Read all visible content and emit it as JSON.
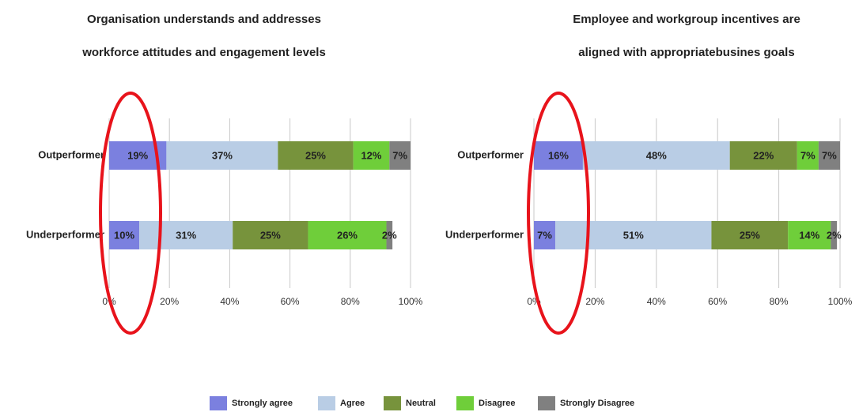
{
  "chart_data": [
    {
      "type": "stacked-bar-horizontal",
      "title": [
        "Organisation understands and addresses",
        "workforce attitudes and engagement levels"
      ],
      "categories": [
        "Outperformer",
        "Underperformer"
      ],
      "series": [
        {
          "name": "Strongly agree",
          "color": "#7b80df",
          "values": [
            19,
            10
          ],
          "value_labels": [
            "19%",
            "10%"
          ]
        },
        {
          "name": "Agree",
          "color": "#b9cde5",
          "values": [
            37,
            31
          ],
          "value_labels": [
            "37%",
            "31%"
          ]
        },
        {
          "name": "Neutral",
          "color": "#77933c",
          "values": [
            25,
            25
          ],
          "value_labels": [
            "25%",
            "25%"
          ]
        },
        {
          "name": "Disagree",
          "color": "#6fce3a",
          "values": [
            12,
            26
          ],
          "value_labels": [
            "12%",
            "26%"
          ]
        },
        {
          "name": "Strongly Disagree",
          "color": "#808080",
          "values": [
            7,
            2
          ],
          "value_labels": [
            "7%",
            "2%"
          ]
        }
      ],
      "xlim": [
        0,
        100
      ],
      "xticks": [
        {
          "value": 0,
          "label": "0%"
        },
        {
          "value": 20,
          "label": "20%"
        },
        {
          "value": 40,
          "label": "40%"
        },
        {
          "value": 60,
          "label": "60%"
        },
        {
          "value": 80,
          "label": "80%"
        },
        {
          "value": 100,
          "label": "100%"
        }
      ],
      "grid": true
    },
    {
      "type": "stacked-bar-horizontal",
      "title": [
        "Employee and workgroup incentives are",
        "aligned with appropriatebusines goals"
      ],
      "categories": [
        "Outperformer",
        "Underperformer"
      ],
      "series": [
        {
          "color": "#7b80df",
          "values": [
            16,
            7
          ],
          "value_labels": [
            "16%",
            "7%"
          ]
        },
        {
          "color": "#b9cde5",
          "values": [
            48,
            51
          ],
          "value_labels": [
            "48%",
            "51%"
          ]
        },
        {
          "color": "#77933c",
          "values": [
            22,
            25
          ],
          "value_labels": [
            "22%",
            "25%"
          ]
        },
        {
          "color": "#6fce3a",
          "values": [
            7,
            14
          ],
          "value_labels": [
            "7%",
            "14%"
          ]
        },
        {
          "color": "#808080",
          "values": [
            7,
            2
          ],
          "value_labels": [
            "7%",
            "2%"
          ]
        }
      ],
      "xlim": [
        0,
        100
      ],
      "xticks": [
        {
          "value": 0,
          "label": "0%"
        },
        {
          "value": 20,
          "label": "20%"
        },
        {
          "value": 40,
          "label": "40%"
        },
        {
          "value": 60,
          "label": "60%"
        },
        {
          "value": 80,
          "label": "80%"
        },
        {
          "value": 100,
          "label": "100%"
        }
      ],
      "grid": true
    }
  ]
}
